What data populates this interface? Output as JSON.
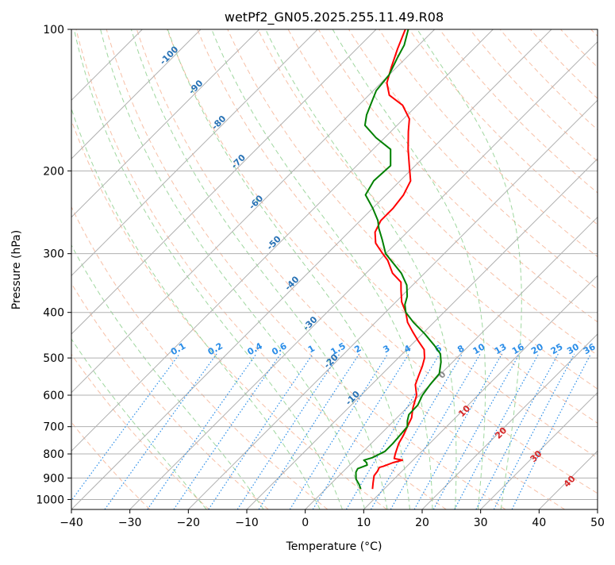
{
  "chart_data": {
    "type": "skew-t",
    "title": "wetPf2_GN05.2025.255.11.49.R08",
    "xlabel": "Temperature (°C)",
    "ylabel": "Pressure (hPa)",
    "xlim": [
      -40,
      50
    ],
    "ylim": [
      1050,
      100
    ],
    "x_ticks": [
      -40,
      -30,
      -20,
      -10,
      0,
      10,
      20,
      30,
      40,
      50
    ],
    "x_tick_labels": [
      "−40",
      "−30",
      "−20",
      "−10",
      "0",
      "10",
      "20",
      "30",
      "40",
      "50"
    ],
    "p_ticks": [
      100,
      200,
      300,
      400,
      500,
      600,
      700,
      800,
      900,
      1000
    ],
    "p_tick_labels": [
      "100",
      "200",
      "300",
      "400",
      "500",
      "600",
      "700",
      "800",
      "900",
      "1000"
    ],
    "isotherms": [
      -110,
      -100,
      -90,
      -80,
      -70,
      -60,
      -50,
      -40,
      -30,
      -20,
      -10,
      0,
      10,
      20,
      30,
      40,
      50
    ],
    "dry_adiabats_theta_C": [
      -30,
      -20,
      -10,
      0,
      10,
      20,
      30,
      40,
      50,
      60,
      70,
      80,
      90,
      100,
      110,
      120,
      130,
      140,
      150,
      160,
      170,
      180,
      190,
      200,
      210,
      220,
      230,
      240
    ],
    "moist_adiabats_theta_C": [
      -20,
      -10,
      0,
      4,
      8,
      12,
      16,
      20,
      24,
      28,
      32
    ],
    "mixing_ratio_lines": {
      "values": [
        0.1,
        0.2,
        0.4,
        0.6,
        1,
        1.5,
        2,
        3,
        4,
        6,
        8,
        10,
        13,
        16,
        20,
        25,
        30,
        36
      ],
      "labels": [
        "0.1",
        "0.2",
        "0.4",
        "0.6",
        "1",
        "1.5",
        "2",
        "3",
        "4",
        "6",
        "8",
        "10",
        "13",
        "16",
        "20",
        "25",
        "30",
        "36"
      ],
      "label_pressure": 490,
      "color": "#2a8de8"
    },
    "isotherm_labels": {
      "items": [
        {
          "text": "-100",
          "t": -100
        },
        {
          "text": "-90",
          "t": -90
        },
        {
          "text": "-80",
          "t": -80
        },
        {
          "text": "-70",
          "t": -70
        },
        {
          "text": "-60",
          "t": -60
        },
        {
          "text": "-50",
          "t": -50
        },
        {
          "text": "-40",
          "t": -40
        },
        {
          "text": "-30",
          "t": -30
        },
        {
          "text": "-20",
          "t": -20
        },
        {
          "text": "-10",
          "t": -10
        }
      ],
      "color": "#2872b5"
    },
    "warm_isotherm_labels": {
      "items": [
        {
          "text": "0",
          "t": 0,
          "p": 540,
          "color": "#888888"
        },
        {
          "text": "10",
          "t": 10,
          "p": 645,
          "color": "#d62728"
        },
        {
          "text": "20",
          "t": 20,
          "p": 718,
          "color": "#d62728"
        },
        {
          "text": "30",
          "t": 30,
          "p": 805,
          "color": "#d62728"
        },
        {
          "text": "40",
          "t": 40,
          "p": 910,
          "color": "#d62728"
        }
      ]
    },
    "series": [
      {
        "name": "Temperature",
        "color": "#ff0000",
        "points": [
          {
            "p": 950,
            "t": 8.0
          },
          {
            "p": 920,
            "t": 7.0
          },
          {
            "p": 890,
            "t": 6.0
          },
          {
            "p": 870,
            "t": 5.8
          },
          {
            "p": 855,
            "t": 5.5
          },
          {
            "p": 850,
            "t": 6.0
          },
          {
            "p": 835,
            "t": 7.0
          },
          {
            "p": 825,
            "t": 8.2
          },
          {
            "p": 818,
            "t": 6.5
          },
          {
            "p": 800,
            "t": 5.9
          },
          {
            "p": 760,
            "t": 4.7
          },
          {
            "p": 730,
            "t": 4.1
          },
          {
            "p": 700,
            "t": 3.3
          },
          {
            "p": 670,
            "t": 2.5
          },
          {
            "p": 640,
            "t": 1.1
          },
          {
            "p": 600,
            "t": -0.5
          },
          {
            "p": 570,
            "t": -2.5
          },
          {
            "p": 545,
            "t": -3.5
          },
          {
            "p": 520,
            "t": -4.5
          },
          {
            "p": 500,
            "t": -5.5
          },
          {
            "p": 480,
            "t": -7.0
          },
          {
            "p": 460,
            "t": -9.5
          },
          {
            "p": 440,
            "t": -12.0
          },
          {
            "p": 420,
            "t": -14.5
          },
          {
            "p": 400,
            "t": -16.5
          },
          {
            "p": 380,
            "t": -19.0
          },
          {
            "p": 360,
            "t": -21.0
          },
          {
            "p": 345,
            "t": -22.5
          },
          {
            "p": 330,
            "t": -25.5
          },
          {
            "p": 310,
            "t": -28.5
          },
          {
            "p": 300,
            "t": -30.5
          },
          {
            "p": 285,
            "t": -33.5
          },
          {
            "p": 270,
            "t": -35.5
          },
          {
            "p": 255,
            "t": -36.5
          },
          {
            "p": 240,
            "t": -36.5
          },
          {
            "p": 225,
            "t": -37.0
          },
          {
            "p": 210,
            "t": -38.2
          },
          {
            "p": 195,
            "t": -41.0
          },
          {
            "p": 180,
            "t": -44.0
          },
          {
            "p": 165,
            "t": -47.0
          },
          {
            "p": 155,
            "t": -49.0
          },
          {
            "p": 145,
            "t": -52.5
          },
          {
            "p": 138,
            "t": -56.5
          },
          {
            "p": 130,
            "t": -59.0
          },
          {
            "p": 120,
            "t": -61.0
          },
          {
            "p": 110,
            "t": -63.0
          },
          {
            "p": 100,
            "t": -65.0
          }
        ]
      },
      {
        "name": "Dewpoint",
        "color": "#008000",
        "points": [
          {
            "p": 950,
            "t": 6.0
          },
          {
            "p": 930,
            "t": 5.0
          },
          {
            "p": 905,
            "t": 3.5
          },
          {
            "p": 875,
            "t": 2.3
          },
          {
            "p": 860,
            "t": 2.0
          },
          {
            "p": 845,
            "t": 3.0
          },
          {
            "p": 835,
            "t": 2.5
          },
          {
            "p": 825,
            "t": 1.6
          },
          {
            "p": 815,
            "t": 2.6
          },
          {
            "p": 790,
            "t": 3.7
          },
          {
            "p": 760,
            "t": 3.7
          },
          {
            "p": 730,
            "t": 3.5
          },
          {
            "p": 700,
            "t": 3.3
          },
          {
            "p": 680,
            "t": 2.3
          },
          {
            "p": 660,
            "t": 1.5
          },
          {
            "p": 630,
            "t": 1.4
          },
          {
            "p": 600,
            "t": 0.5
          },
          {
            "p": 570,
            "t": 0.0
          },
          {
            "p": 540,
            "t": -0.3
          },
          {
            "p": 510,
            "t": -2.0
          },
          {
            "p": 490,
            "t": -3.5
          },
          {
            "p": 470,
            "t": -6.0
          },
          {
            "p": 445,
            "t": -9.5
          },
          {
            "p": 420,
            "t": -13.5
          },
          {
            "p": 400,
            "t": -16.5
          },
          {
            "p": 385,
            "t": -18.0
          },
          {
            "p": 370,
            "t": -19.0
          },
          {
            "p": 350,
            "t": -21.0
          },
          {
            "p": 330,
            "t": -24.0
          },
          {
            "p": 300,
            "t": -30.0
          },
          {
            "p": 280,
            "t": -33.0
          },
          {
            "p": 265,
            "t": -35.5
          },
          {
            "p": 255,
            "t": -37.0
          },
          {
            "p": 240,
            "t": -40.0
          },
          {
            "p": 225,
            "t": -43.5
          },
          {
            "p": 210,
            "t": -44.5
          },
          {
            "p": 195,
            "t": -44.2
          },
          {
            "p": 180,
            "t": -47.0
          },
          {
            "p": 170,
            "t": -51.5
          },
          {
            "p": 160,
            "t": -55.5
          },
          {
            "p": 152,
            "t": -57.0
          },
          {
            "p": 145,
            "t": -58.0
          },
          {
            "p": 135,
            "t": -59.5
          },
          {
            "p": 125,
            "t": -60.0
          },
          {
            "p": 115,
            "t": -61.5
          },
          {
            "p": 108,
            "t": -62.5
          },
          {
            "p": 100,
            "t": -64.5
          }
        ]
      }
    ],
    "grid": true,
    "background_line_colors": {
      "isotherm": "#b0b0b0",
      "isobar": "#b0b0b0",
      "dry_adiabat": "#f4a582",
      "moist_adiabat": "#7fc97f",
      "reference_curve": "#d2b48c"
    }
  }
}
